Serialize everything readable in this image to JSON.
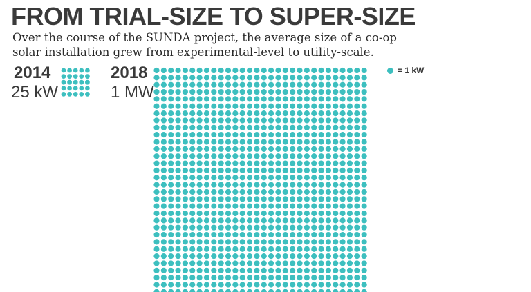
{
  "title": "FROM TRIAL-SIZE TO SUPER-SIZE",
  "subtitle": "Over the course of the SUNDA project, the average size of a co-op solar installation grew from experimental-level to utility-scale.",
  "legend": {
    "label": "= 1 kW",
    "color": "#3dbfbf"
  },
  "chart_data": {
    "type": "pictogram",
    "unit": "1 kW per dot",
    "categories": [
      "2014",
      "2018"
    ],
    "display_values": [
      "25 kW",
      "1 MW"
    ],
    "values_kw": [
      25,
      1000
    ],
    "dot_color": "#3dbfbf"
  }
}
